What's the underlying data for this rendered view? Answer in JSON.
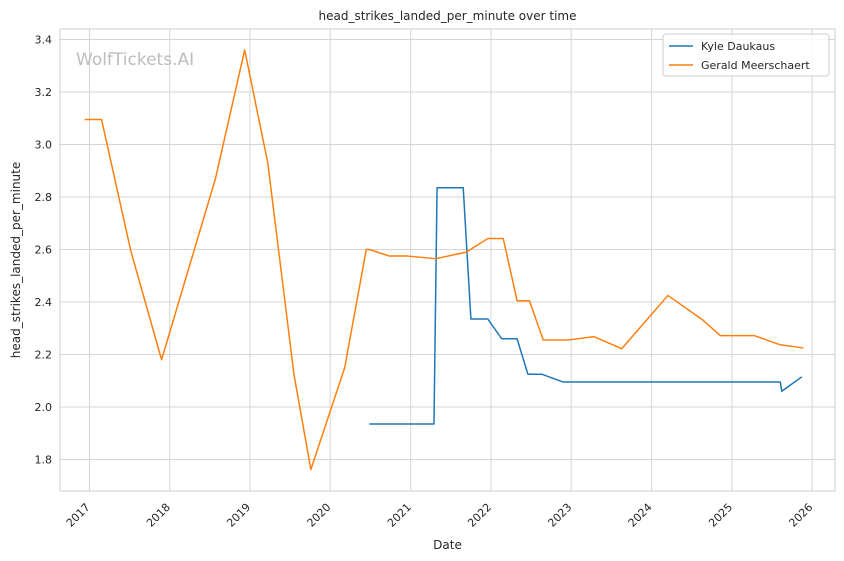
{
  "chart_data": {
    "type": "line",
    "title": "head_strikes_landed_per_minute over time",
    "xlabel": "Date",
    "ylabel": "head_strikes_landed_per_minute",
    "watermark": "WolfTickets.AI",
    "grid": true,
    "legend_position": "top-right",
    "xlim": [
      "2016-08-20",
      "2026-04-15"
    ],
    "ylim": [
      1.68,
      3.44
    ],
    "x_ticks": [
      "2017-01-01",
      "2018-01-01",
      "2019-01-01",
      "2020-01-01",
      "2021-01-01",
      "2022-01-01",
      "2023-01-01",
      "2024-01-01",
      "2025-01-01",
      "2026-01-01"
    ],
    "x_tick_labels": [
      "2017",
      "2018",
      "2019",
      "2020",
      "2021",
      "2022",
      "2023",
      "2024",
      "2025",
      "2026"
    ],
    "y_ticks": [
      1.8,
      2.0,
      2.2,
      2.4,
      2.6,
      2.8,
      3.0,
      3.2,
      3.4
    ],
    "y_tick_labels": [
      "1.8",
      "2.0",
      "2.2",
      "2.4",
      "2.6",
      "2.8",
      "3.0",
      "3.2",
      "3.4"
    ],
    "series": [
      {
        "name": "Kyle Daukaus",
        "color": "#1f77b4",
        "points": [
          [
            "2020-06-27",
            1.935
          ],
          [
            "2021-04-17",
            1.935
          ],
          [
            "2021-05-01",
            2.835
          ],
          [
            "2021-08-28",
            2.835
          ],
          [
            "2021-10-02",
            2.335
          ],
          [
            "2021-12-18",
            2.335
          ],
          [
            "2022-02-19",
            2.26
          ],
          [
            "2022-04-30",
            2.26
          ],
          [
            "2022-06-18",
            2.125
          ],
          [
            "2022-08-20",
            2.125
          ],
          [
            "2022-11-26",
            2.095
          ],
          [
            "2025-08-09",
            2.095
          ],
          [
            "2025-08-16",
            2.06
          ],
          [
            "2025-11-15",
            2.115
          ]
        ]
      },
      {
        "name": "Gerald Meerschaert",
        "color": "#ff7f0e",
        "points": [
          [
            "2016-12-10",
            3.095
          ],
          [
            "2017-02-25",
            3.095
          ],
          [
            "2017-07-08",
            2.595
          ],
          [
            "2017-11-25",
            2.18
          ],
          [
            "2018-07-28",
            2.87
          ],
          [
            "2018-12-08",
            3.36
          ],
          [
            "2019-03-23",
            2.93
          ],
          [
            "2019-07-20",
            2.125
          ],
          [
            "2019-10-05",
            1.762
          ],
          [
            "2020-03-07",
            2.15
          ],
          [
            "2020-06-13",
            2.6
          ],
          [
            "2020-06-27",
            2.6
          ],
          [
            "2020-09-26",
            2.575
          ],
          [
            "2020-12-19",
            2.575
          ],
          [
            "2021-04-24",
            2.565
          ],
          [
            "2021-09-11",
            2.59
          ],
          [
            "2021-12-18",
            2.642
          ],
          [
            "2022-02-26",
            2.642
          ],
          [
            "2022-04-30",
            2.405
          ],
          [
            "2022-06-25",
            2.405
          ],
          [
            "2022-08-27",
            2.255
          ],
          [
            "2022-12-17",
            2.255
          ],
          [
            "2023-04-15",
            2.268
          ],
          [
            "2023-08-19",
            2.222
          ],
          [
            "2024-03-16",
            2.425
          ],
          [
            "2024-08-24",
            2.33
          ],
          [
            "2024-11-09",
            2.272
          ],
          [
            "2025-04-12",
            2.272
          ],
          [
            "2025-08-09",
            2.237
          ],
          [
            "2025-11-22",
            2.225
          ]
        ]
      }
    ]
  }
}
